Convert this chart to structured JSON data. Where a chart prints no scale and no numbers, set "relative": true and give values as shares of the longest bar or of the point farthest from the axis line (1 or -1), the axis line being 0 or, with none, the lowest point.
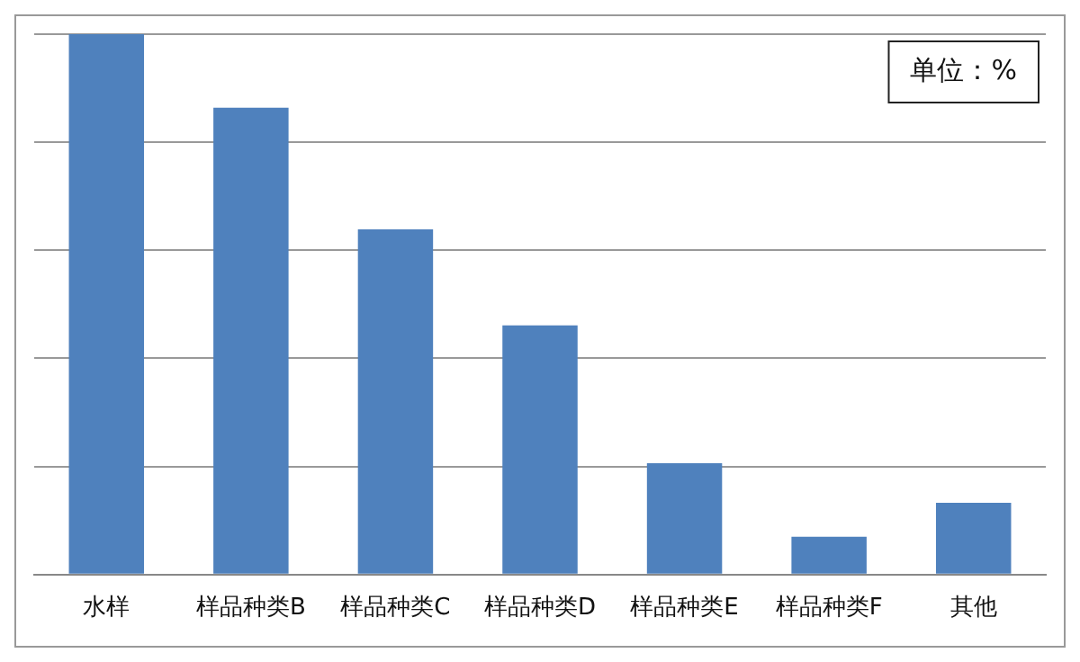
{
  "chart_data": {
    "type": "bar",
    "relative": true,
    "categories": [
      "水样",
      "样品种类B",
      "样品种类C",
      "样品种类D",
      "样品种类E",
      "样品种类F",
      "其他"
    ],
    "values": [
      1,
      0.864,
      0.639,
      0.461,
      0.206,
      0.07,
      0.133
    ],
    "color": "#4f81bd",
    "grid": "y",
    "legend": false,
    "annotations": [
      "单位：%"
    ]
  }
}
